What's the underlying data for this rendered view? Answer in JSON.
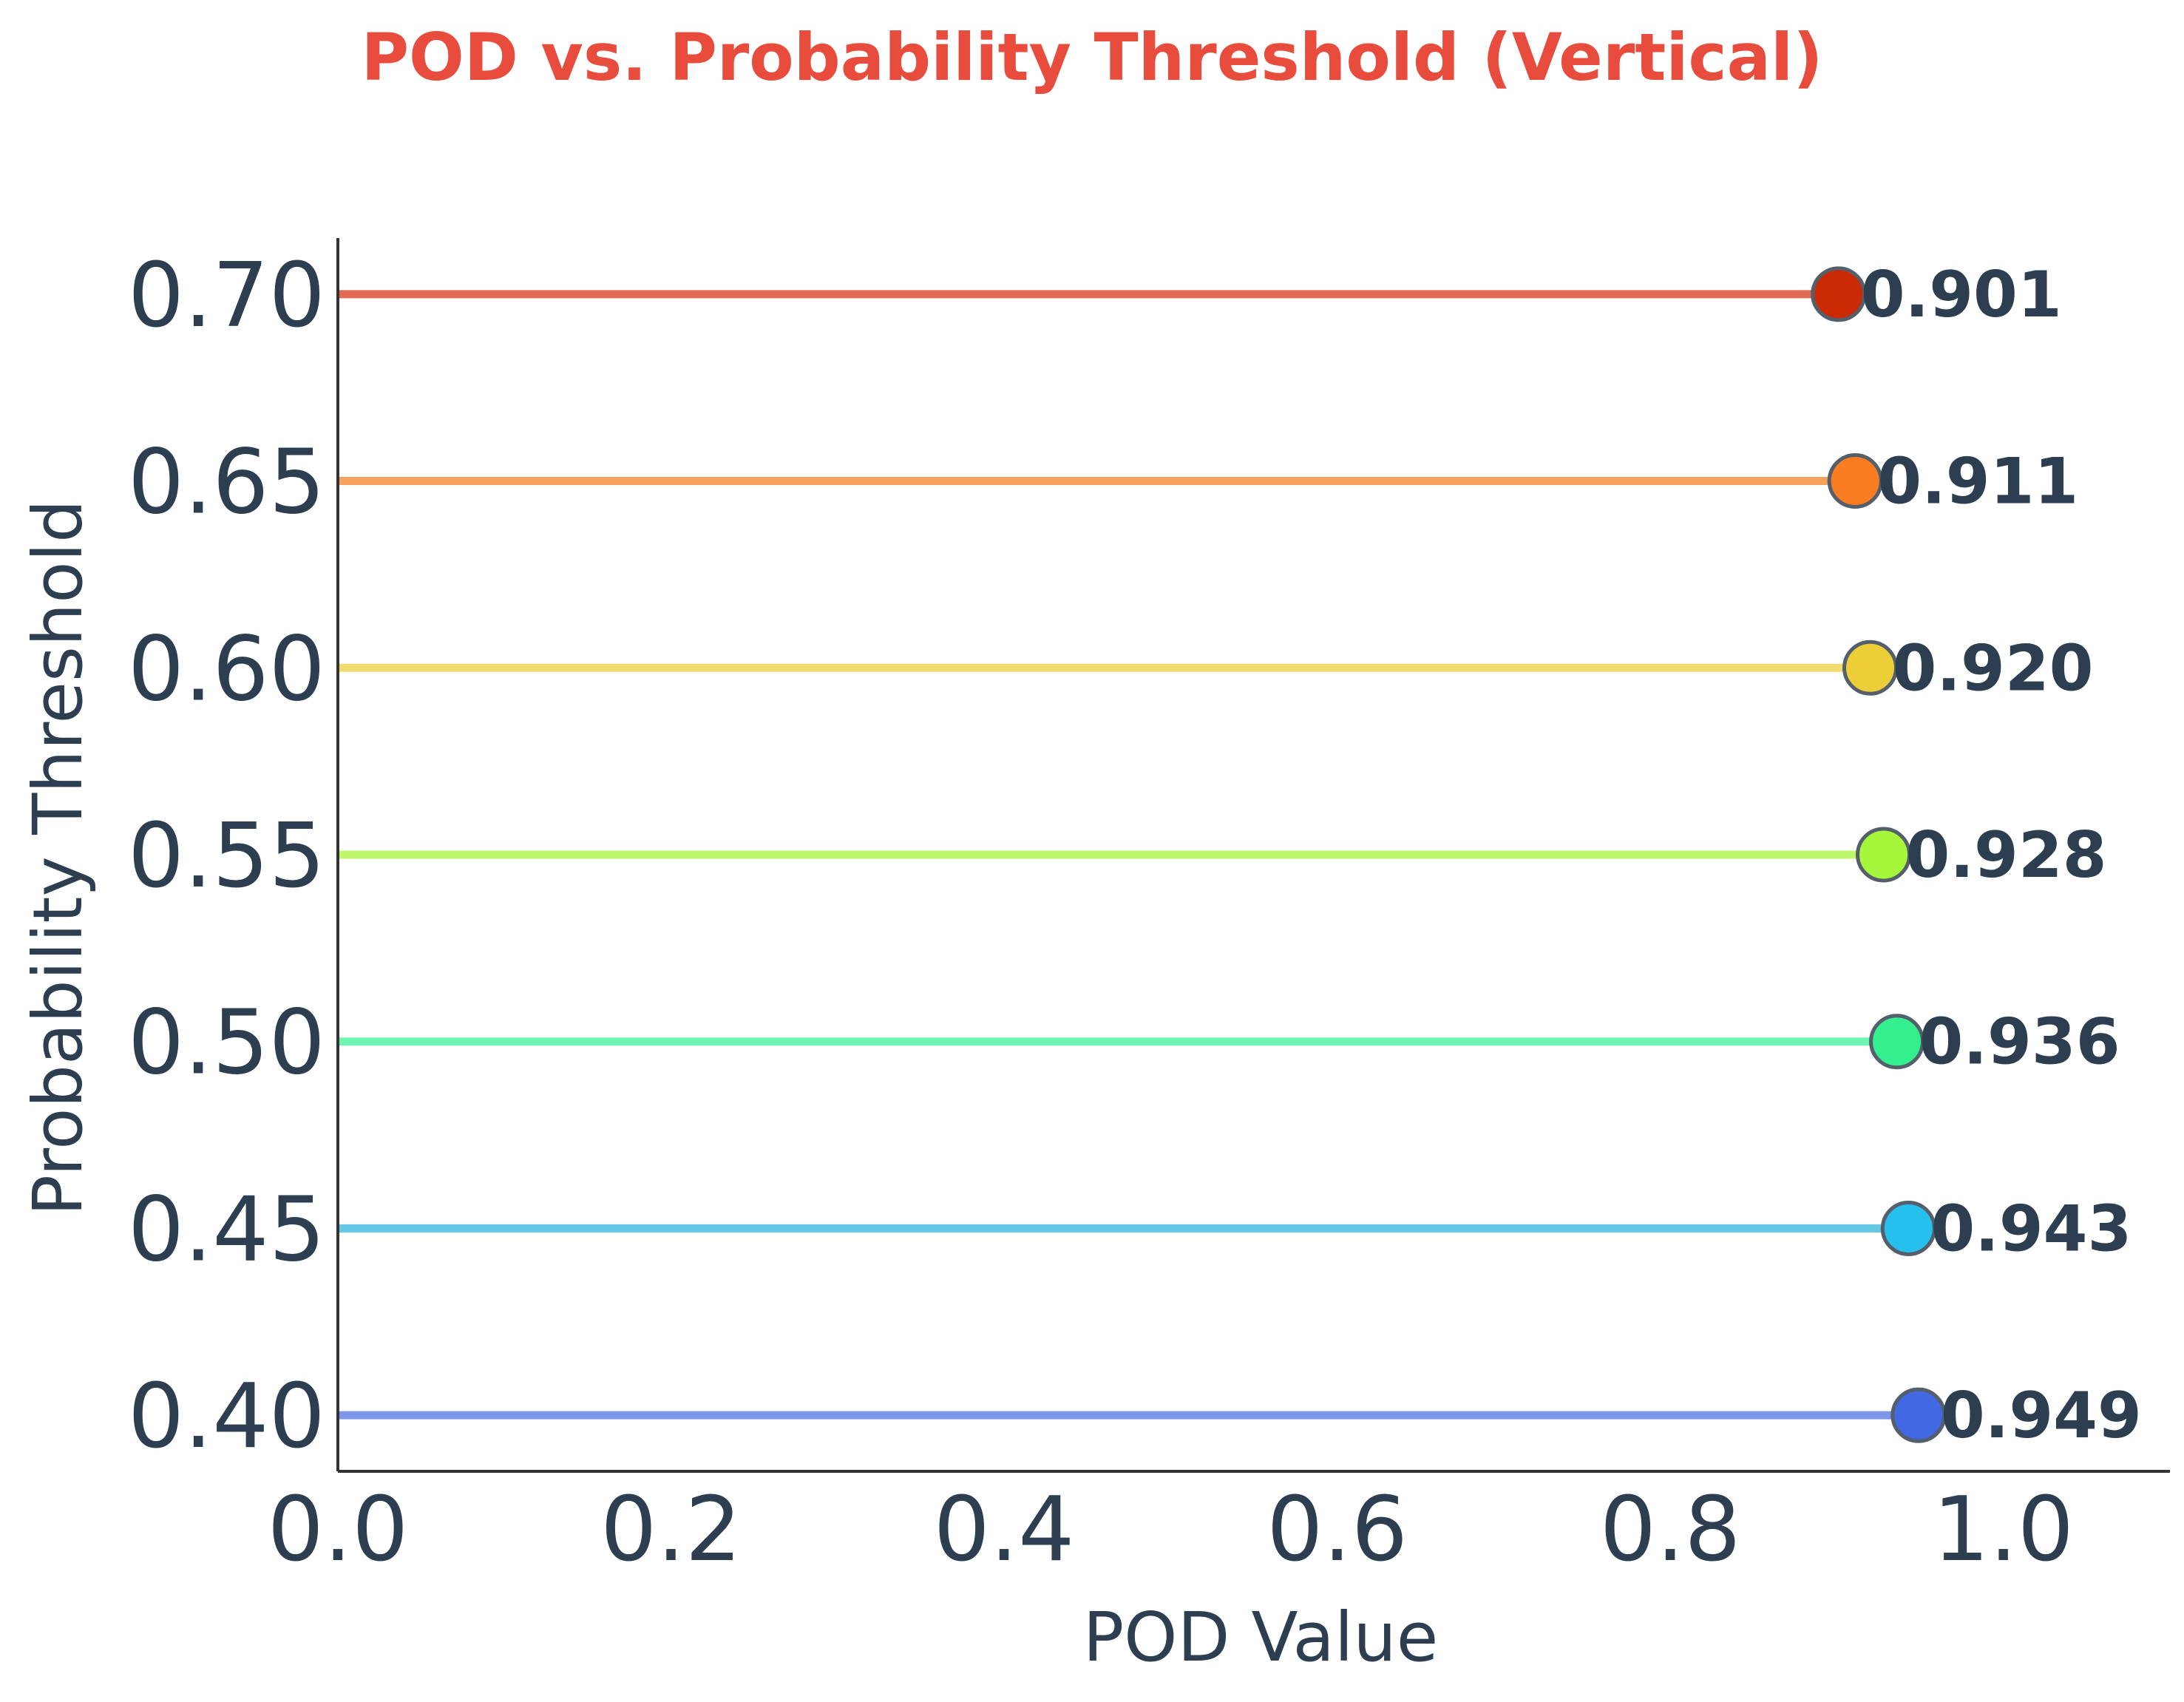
{
  "chart_data": {
    "type": "lollipop",
    "orientation": "horizontal",
    "title": "POD vs. Probability Threshold (Vertical)",
    "xlabel": "POD Value",
    "ylabel": "Probability Threshold",
    "xlim": [
      0.0,
      1.1
    ],
    "xticks": [
      0.0,
      0.2,
      0.4,
      0.6,
      0.8,
      1.0
    ],
    "xtick_labels": [
      "0.0",
      "0.2",
      "0.4",
      "0.6",
      "0.8",
      "1.0"
    ],
    "ylim": [
      0.385,
      0.715
    ],
    "yticks": [
      0.4,
      0.45,
      0.5,
      0.55,
      0.6,
      0.65,
      0.7
    ],
    "ytick_labels": [
      "0.40",
      "0.45",
      "0.50",
      "0.55",
      "0.60",
      "0.65",
      "0.70"
    ],
    "grid": false,
    "points": [
      {
        "threshold": 0.7,
        "value": 0.901,
        "label": "0.901",
        "line_color": "#e06a52",
        "marker_color": "#cc2a04"
      },
      {
        "threshold": 0.65,
        "value": 0.911,
        "label": "0.911",
        "line_color": "#f5a25d",
        "marker_color": "#fa7d22"
      },
      {
        "threshold": 0.6,
        "value": 0.92,
        "label": "0.920",
        "line_color": "#f0dc6e",
        "marker_color": "#ecce39"
      },
      {
        "threshold": 0.55,
        "value": 0.928,
        "label": "0.928",
        "line_color": "#bef76c",
        "marker_color": "#a6f73c"
      },
      {
        "threshold": 0.5,
        "value": 0.936,
        "label": "0.936",
        "line_color": "#6ff5b4",
        "marker_color": "#34ef8e"
      },
      {
        "threshold": 0.45,
        "value": 0.943,
        "label": "0.943",
        "line_color": "#62c8e4",
        "marker_color": "#27c0ee"
      },
      {
        "threshold": 0.4,
        "value": 0.949,
        "label": "0.949",
        "line_color": "#7e96e8",
        "marker_color": "#4268e4"
      }
    ],
    "colors": {
      "title": "#e74c3c",
      "text": "#2c3e50",
      "axis": "#333333",
      "marker_edge": "#555e6b"
    }
  }
}
